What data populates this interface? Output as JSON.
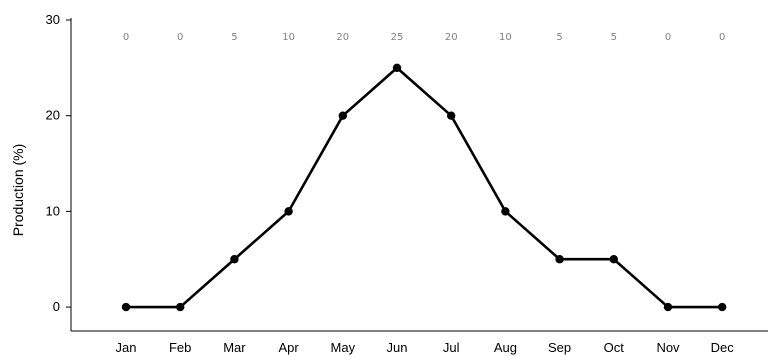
{
  "chart_data": {
    "type": "line",
    "title": "",
    "xlabel": "",
    "ylabel": "Production (%)",
    "categories": [
      "Jan",
      "Feb",
      "Mar",
      "Apr",
      "May",
      "Jun",
      "Jul",
      "Aug",
      "Sep",
      "Oct",
      "Nov",
      "Dec"
    ],
    "series": [
      {
        "values": [
          0,
          0,
          5,
          10,
          20,
          25,
          20,
          10,
          5,
          5,
          0,
          0
        ]
      }
    ],
    "data_labels": [
      "0",
      "0",
      "5",
      "10",
      "20",
      "25",
      "20",
      "10",
      "5",
      "5",
      "0",
      "0"
    ],
    "ylim": [
      -2.5,
      30
    ],
    "yticks": [
      0,
      10,
      20,
      30
    ],
    "ytick_labels": [
      "0",
      "10",
      "20",
      "30"
    ],
    "grid": false,
    "colors": {
      "line": "#000000",
      "marker": "#000000",
      "data_label": "#808080",
      "axis": "#000000"
    }
  }
}
